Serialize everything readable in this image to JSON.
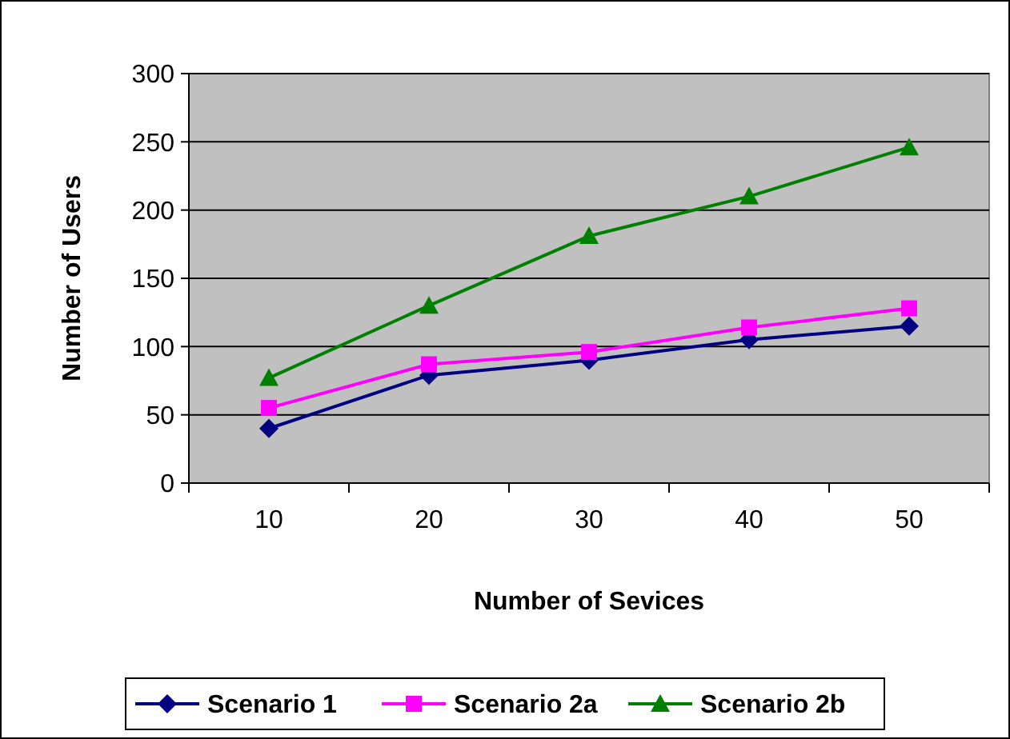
{
  "chart_data": {
    "type": "line",
    "xlabel": "Number of Sevices",
    "ylabel": "Number of Users",
    "categories": [
      "10",
      "20",
      "30",
      "40",
      "50"
    ],
    "ylim": [
      0,
      300
    ],
    "yticks": [
      0,
      50,
      100,
      150,
      200,
      250,
      300
    ],
    "grid": "y",
    "legend": "bottom",
    "series": [
      {
        "name": "Scenario 1",
        "color": "#000080",
        "marker": "diamond",
        "values": [
          40,
          79,
          90,
          105,
          115
        ]
      },
      {
        "name": "Scenario 2a",
        "color": "#ff00ff",
        "marker": "square",
        "values": [
          55,
          87,
          96,
          114,
          128
        ]
      },
      {
        "name": "Scenario 2b",
        "color": "#008000",
        "marker": "triangle",
        "values": [
          77,
          130,
          181,
          210,
          246
        ]
      }
    ]
  }
}
